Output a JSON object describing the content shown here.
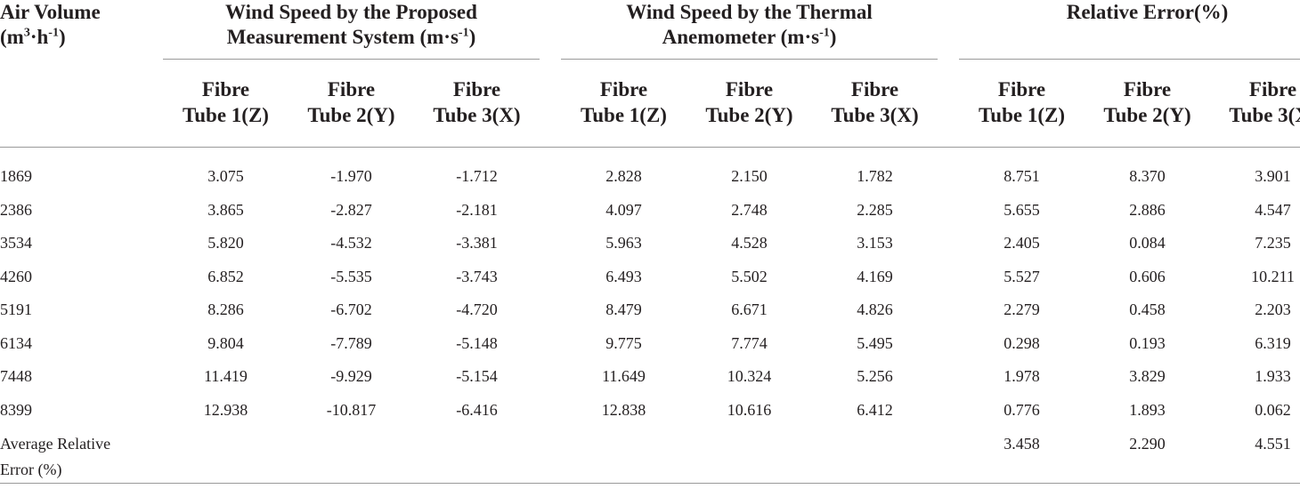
{
  "header": {
    "first_col_line1": "Air Volume",
    "first_col_line2_pre": "(m",
    "first_col_sup1": "3",
    "first_col_mid": "·h",
    "first_col_sup2": "-1",
    "first_col_post": ")",
    "groups": [
      {
        "line1": "Wind Speed by the Proposed",
        "line2": "Measurement System (m·s",
        "sup": "-1",
        "post": ")"
      },
      {
        "line1": "Wind Speed by the Thermal",
        "line2": "Anemometer (m·s",
        "sup": "-1",
        "post": ")"
      },
      {
        "line1": "Relative Error(%)"
      }
    ],
    "subcols": [
      {
        "l1": "Fibre",
        "l2": "Tube 1(Z)"
      },
      {
        "l1": "Fibre",
        "l2": "Tube 2(Y)"
      },
      {
        "l1": "Fibre",
        "l2": "Tube 3(X)"
      }
    ]
  },
  "rows": [
    {
      "label": "1869",
      "v": [
        "3.075",
        "-1.970",
        "-1.712",
        "2.828",
        "2.150",
        "1.782",
        "8.751",
        "8.370",
        "3.901"
      ]
    },
    {
      "label": "2386",
      "v": [
        "3.865",
        "-2.827",
        "-2.181",
        "4.097",
        "2.748",
        "2.285",
        "5.655",
        "2.886",
        "4.547"
      ]
    },
    {
      "label": "3534",
      "v": [
        "5.820",
        "-4.532",
        "-3.381",
        "5.963",
        "4.528",
        "3.153",
        "2.405",
        "0.084",
        "7.235"
      ]
    },
    {
      "label": "4260",
      "v": [
        "6.852",
        "-5.535",
        "-3.743",
        "6.493",
        "5.502",
        "4.169",
        "5.527",
        "0.606",
        "10.211"
      ]
    },
    {
      "label": "5191",
      "v": [
        "8.286",
        "-6.702",
        "-4.720",
        "8.479",
        "6.671",
        "4.826",
        "2.279",
        "0.458",
        "2.203"
      ]
    },
    {
      "label": "6134",
      "v": [
        "9.804",
        "-7.789",
        "-5.148",
        "9.775",
        "7.774",
        "5.495",
        "0.298",
        "0.193",
        "6.319"
      ]
    },
    {
      "label": "7448",
      "v": [
        "11.419",
        "-9.929",
        "-5.154",
        "11.649",
        "10.324",
        "5.256",
        "1.978",
        "3.829",
        "1.933"
      ]
    },
    {
      "label": "8399",
      "v": [
        "12.938",
        "-10.817",
        "-6.416",
        "12.838",
        "10.616",
        "6.412",
        "0.776",
        "1.893",
        "0.062"
      ]
    }
  ],
  "average": {
    "label_line1": "Average Relative",
    "label_line2": "Error (%)",
    "values": [
      "3.458",
      "2.290",
      "4.551"
    ]
  }
}
